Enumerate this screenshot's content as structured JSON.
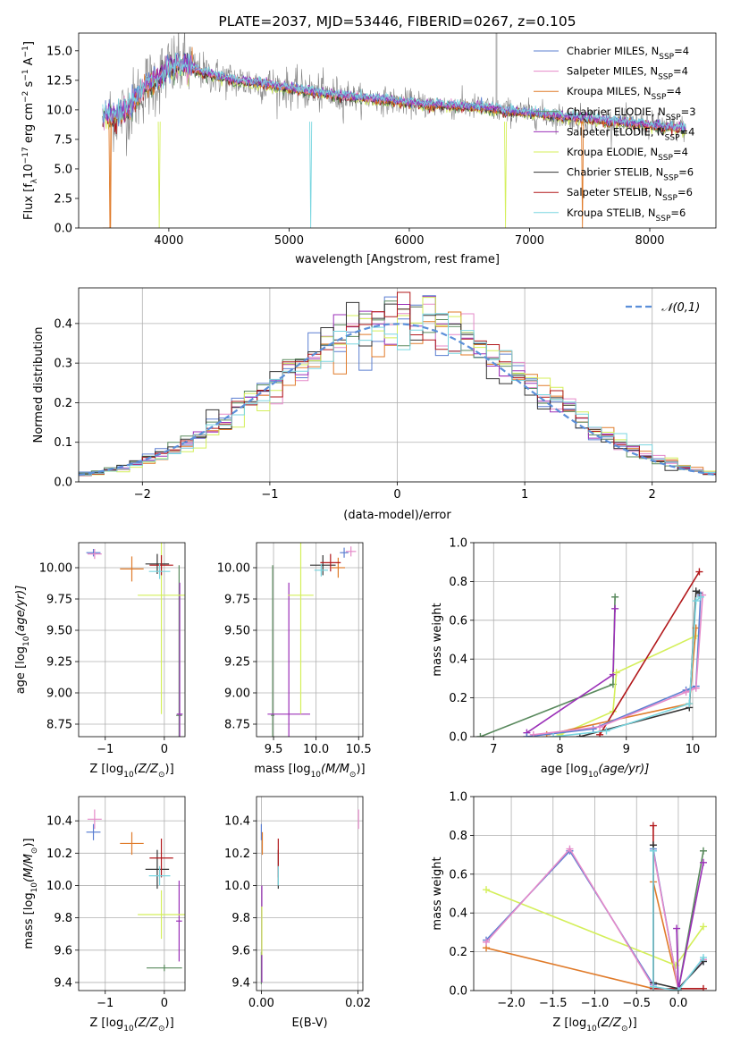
{
  "colors": {
    "chabrier_miles": "#5b7fd1",
    "salpeter_miles": "#e58ac9",
    "kroupa_miles": "#e07b2a",
    "chabrier_elodie": "#5a8a5e",
    "salpeter_elodie": "#9b30b8",
    "kroupa_elodie": "#d4ef5a",
    "chabrier_stelib": "#333333",
    "salpeter_stelib": "#b2181b",
    "kroupa_stelib": "#79d6e0",
    "normal_curve": "#5b8fd9"
  },
  "chart_data": [
    {
      "id": "spectrum",
      "type": "line",
      "title": "PLATE=2037, MJD=53446, FIBERID=0267, z=0.105",
      "xlabel": "wavelength [Angstrom, rest frame]",
      "ylabel": "Flux [f",
      "ylabel_sub": "λ",
      "ylabel_mid": "10",
      "ylabel_sup1": "−17",
      "ylabel_unit": " erg cm",
      "ylabel_sup2": "−2",
      "ylabel_s": " s",
      "ylabel_sup3": "−1",
      "ylabel_A": " A",
      "ylabel_sup4": "−1",
      "ylabel_end": "]",
      "xlim": [
        3250,
        8550
      ],
      "ylim": [
        0,
        16.5
      ],
      "xticks": [
        4000,
        5000,
        6000,
        7000,
        8000
      ],
      "yticks": [
        0.0,
        2.5,
        5.0,
        7.5,
        10.0,
        12.5,
        15.0
      ],
      "legend_position": "upper-right",
      "series": [
        {
          "key": "chabrier_miles",
          "label": "Chabrier MILES, N",
          "sub": "SSP",
          "suffix": "=4"
        },
        {
          "key": "salpeter_miles",
          "label": "Salpeter MILES, N",
          "sub": "SSP",
          "suffix": "=4"
        },
        {
          "key": "kroupa_miles",
          "label": "Kroupa MILES, N",
          "sub": "SSP",
          "suffix": "=4"
        },
        {
          "key": "chabrier_elodie",
          "label": "Chabrier ELODIE, N",
          "sub": "SSP",
          "suffix": "=3"
        },
        {
          "key": "salpeter_elodie",
          "label": "Salpeter ELODIE, N",
          "sub": "SSP",
          "suffix": "=4"
        },
        {
          "key": "kroupa_elodie",
          "label": "Kroupa ELODIE, N",
          "sub": "SSP",
          "suffix": "=4"
        },
        {
          "key": "chabrier_stelib",
          "label": "Chabrier STELIB, N",
          "sub": "SSP",
          "suffix": "=6"
        },
        {
          "key": "salpeter_stelib",
          "label": "Salpeter STELIB, N",
          "sub": "SSP",
          "suffix": "=6"
        },
        {
          "key": "kroupa_stelib",
          "label": "Kroupa STELIB, N",
          "sub": "SSP",
          "suffix": "=6"
        }
      ],
      "data_envelope": {
        "x": [
          3450,
          3600,
          3700,
          3800,
          3900,
          4000,
          4100,
          4200,
          4400,
          4600,
          4800,
          5000,
          5200,
          5400,
          5600,
          5800,
          6000,
          6200,
          6400,
          6600,
          6800,
          7000,
          7200,
          7400,
          7600,
          7800,
          8000,
          8300
        ],
        "y": [
          9.4,
          9.6,
          10.5,
          12.0,
          12.5,
          13.5,
          13.8,
          13.5,
          12.8,
          12.4,
          12.2,
          11.8,
          11.5,
          11.2,
          11.0,
          10.8,
          10.6,
          10.4,
          10.3,
          10.2,
          9.9,
          9.7,
          9.5,
          9.3,
          9.1,
          8.9,
          8.7,
          8.4
        ]
      }
    },
    {
      "id": "residuals",
      "type": "histogram",
      "xlabel": "(data-model)/error",
      "ylabel": "Normed distribution",
      "xlim": [
        -2.5,
        2.5
      ],
      "ylim": [
        0,
        0.49
      ],
      "xticks": [
        -2,
        -1,
        0,
        1,
        2
      ],
      "yticks": [
        0.0,
        0.1,
        0.2,
        0.3,
        0.4
      ],
      "grid": true,
      "bin_width": 0.1,
      "legend_label": "𝒩(0,1)",
      "legend_position": "upper-right"
    },
    {
      "id": "age_vs_Z",
      "type": "errorbar",
      "xlabel": "Z [log",
      "xlabel_sub": "10",
      "xlabel_mid": "(Z/Z",
      "xlabel_sub2": "⊙",
      "xlabel_end": ")]",
      "ylabel": "age  [log",
      "ylabel_sub": "10",
      "ylabel_end": "(age/yr)]",
      "xlim": [
        -1.45,
        0.35
      ],
      "ylim": [
        8.65,
        10.2
      ],
      "xticks": [
        -1,
        0
      ],
      "yticks": [
        8.75,
        9.0,
        9.25,
        9.5,
        9.75,
        10.0
      ],
      "grid": true,
      "points": [
        {
          "key": "chabrier_miles",
          "x": -1.2,
          "xerr": 0.12,
          "y": 10.12,
          "yerr": 0.03
        },
        {
          "key": "salpeter_miles",
          "x": -1.18,
          "xerr": 0.12,
          "y": 10.11,
          "yerr": 0.04
        },
        {
          "key": "kroupa_miles",
          "x": -0.55,
          "xerr": 0.2,
          "y": 9.99,
          "yerr": 0.1
        },
        {
          "key": "chabrier_elodie",
          "x": 0.25,
          "xerr": 0.05,
          "y": 8.82,
          "yerr": 1.2
        },
        {
          "key": "salpeter_elodie",
          "x": 0.26,
          "xerr": 0.05,
          "y": 8.83,
          "yerr": 1.05
        },
        {
          "key": "kroupa_elodie",
          "x": -0.05,
          "xerr": 0.4,
          "y": 9.78,
          "yerr": 0.95
        },
        {
          "key": "chabrier_stelib",
          "x": -0.12,
          "xerr": 0.2,
          "y": 10.03,
          "yerr": 0.08
        },
        {
          "key": "salpeter_stelib",
          "x": -0.05,
          "xerr": 0.2,
          "y": 10.02,
          "yerr": 0.08
        },
        {
          "key": "kroupa_stelib",
          "x": -0.08,
          "xerr": 0.18,
          "y": 9.97,
          "yerr": 0.06
        }
      ]
    },
    {
      "id": "age_vs_mass",
      "type": "errorbar",
      "xlabel": "mass [log",
      "xlabel_sub": "10",
      "xlabel_mid": "(M/M",
      "xlabel_sub2": "⊙",
      "xlabel_end": ")]",
      "xlim": [
        9.3,
        10.55
      ],
      "ylim": [
        8.65,
        10.2
      ],
      "xticks": [
        9.5,
        10.0,
        10.5
      ],
      "yticks": [
        8.75,
        9.0,
        9.25,
        9.5,
        9.75,
        10.0
      ],
      "grid": true,
      "points": [
        {
          "key": "chabrier_miles",
          "x": 10.33,
          "xerr": 0.05,
          "y": 10.12,
          "yerr": 0.04
        },
        {
          "key": "salpeter_miles",
          "x": 10.41,
          "xerr": 0.06,
          "y": 10.13,
          "yerr": 0.04
        },
        {
          "key": "kroupa_miles",
          "x": 10.26,
          "xerr": 0.08,
          "y": 10.0,
          "yerr": 0.08
        },
        {
          "key": "chabrier_elodie",
          "x": 9.49,
          "xerr": 0.02,
          "y": 8.82,
          "yerr": 1.2
        },
        {
          "key": "salpeter_elodie",
          "x": 9.68,
          "xerr": 0.25,
          "y": 8.83,
          "yerr": 1.05
        },
        {
          "key": "kroupa_elodie",
          "x": 9.82,
          "xerr": 0.15,
          "y": 9.78,
          "yerr": 0.95
        },
        {
          "key": "chabrier_stelib",
          "x": 10.08,
          "xerr": 0.15,
          "y": 10.02,
          "yerr": 0.08
        },
        {
          "key": "salpeter_stelib",
          "x": 10.17,
          "xerr": 0.12,
          "y": 10.04,
          "yerr": 0.07
        },
        {
          "key": "kroupa_stelib",
          "x": 10.06,
          "xerr": 0.08,
          "y": 9.98,
          "yerr": 0.05
        }
      ]
    },
    {
      "id": "weight_vs_age",
      "type": "line",
      "xlabel": "age  [log",
      "xlabel_sub": "10",
      "xlabel_end": "(age/yr)]",
      "ylabel": "mass weight",
      "xlim": [
        6.7,
        10.35
      ],
      "ylim": [
        0,
        1.0
      ],
      "xticks": [
        7,
        8,
        9,
        10
      ],
      "yticks": [
        0.0,
        0.2,
        0.4,
        0.6,
        0.8,
        1.0
      ],
      "grid": true,
      "series": [
        {
          "key": "chabrier_elodie",
          "x": [
            6.8,
            8.8,
            8.83
          ],
          "y": [
            0.0,
            0.27,
            0.72
          ]
        },
        {
          "key": "salpeter_elodie",
          "x": [
            7.5,
            8.8,
            8.83
          ],
          "y": [
            0.02,
            0.32,
            0.66
          ]
        },
        {
          "key": "kroupa_elodie",
          "x": [
            8.0,
            8.8,
            8.85,
            10.05
          ],
          "y": [
            0.01,
            0.13,
            0.33,
            0.52
          ]
        },
        {
          "key": "salpeter_stelib",
          "x": [
            8.6,
            10.1
          ],
          "y": [
            0.01,
            0.85
          ]
        },
        {
          "key": "kroupa_miles",
          "x": [
            7.8,
            9.95,
            10.05
          ],
          "y": [
            0.01,
            0.17,
            0.56
          ]
        },
        {
          "key": "chabrier_stelib",
          "x": [
            8.3,
            9.95,
            10.05,
            10.1
          ],
          "y": [
            0.0,
            0.15,
            0.75,
            0.74
          ]
        },
        {
          "key": "chabrier_miles",
          "x": [
            7.5,
            8.5,
            9.9,
            10.05,
            10.12
          ],
          "y": [
            0.0,
            0.04,
            0.24,
            0.26,
            0.73
          ]
        },
        {
          "key": "salpeter_miles",
          "x": [
            7.6,
            8.6,
            9.9,
            10.05,
            10.15
          ],
          "y": [
            0.01,
            0.05,
            0.23,
            0.25,
            0.73
          ]
        },
        {
          "key": "kroupa_stelib",
          "x": [
            7.9,
            8.7,
            9.95,
            10.05,
            10.12
          ],
          "y": [
            0.0,
            0.03,
            0.17,
            0.7,
            0.72
          ]
        }
      ]
    },
    {
      "id": "mass_vs_Z",
      "type": "errorbar",
      "xlabel": "Z [log",
      "xlabel_sub": "10",
      "xlabel_mid": "(Z/Z",
      "xlabel_sub2": "⊙",
      "xlabel_end": ")]",
      "ylabel": "mass [log",
      "ylabel_sub": "10",
      "ylabel_mid": "(M/M",
      "ylabel_sub2": "⊙",
      "ylabel_end": ")]",
      "xlim": [
        -1.45,
        0.35
      ],
      "ylim": [
        9.35,
        10.55
      ],
      "xticks": [
        -1,
        0
      ],
      "yticks": [
        9.4,
        9.6,
        9.8,
        10.0,
        10.2,
        10.4
      ],
      "grid": true,
      "points": [
        {
          "key": "chabrier_miles",
          "x": -1.2,
          "xerr": 0.12,
          "y": 10.33,
          "yerr": 0.05
        },
        {
          "key": "salpeter_miles",
          "x": -1.18,
          "xerr": 0.12,
          "y": 10.41,
          "yerr": 0.06
        },
        {
          "key": "kroupa_miles",
          "x": -0.55,
          "xerr": 0.2,
          "y": 10.26,
          "yerr": 0.07
        },
        {
          "key": "chabrier_elodie",
          "x": 0.0,
          "xerr": 0.3,
          "y": 9.49,
          "yerr": 0.02
        },
        {
          "key": "salpeter_elodie",
          "x": 0.25,
          "xerr": 0.05,
          "y": 9.78,
          "yerr": 0.25
        },
        {
          "key": "kroupa_elodie",
          "x": -0.05,
          "xerr": 0.4,
          "y": 9.82,
          "yerr": 0.15
        },
        {
          "key": "chabrier_stelib",
          "x": -0.12,
          "xerr": 0.2,
          "y": 10.1,
          "yerr": 0.12
        },
        {
          "key": "salpeter_stelib",
          "x": -0.05,
          "xerr": 0.2,
          "y": 10.17,
          "yerr": 0.12
        },
        {
          "key": "kroupa_stelib",
          "x": -0.08,
          "xerr": 0.18,
          "y": 10.06,
          "yerr": 0.06
        }
      ]
    },
    {
      "id": "mass_vs_ebv",
      "type": "errorbar",
      "xlabel": "E(B-V)",
      "xlim": [
        -0.001,
        0.021
      ],
      "ylim": [
        9.35,
        10.55
      ],
      "xticks": [
        0.0,
        0.02
      ],
      "xtick_labels": [
        "0.00",
        "0.02"
      ],
      "yticks": [
        9.4,
        9.6,
        9.8,
        10.0,
        10.2,
        10.4
      ],
      "grid": true,
      "points": [
        {
          "key": "chabrier_miles",
          "x": 0.0,
          "xerr": 0,
          "y": 10.33,
          "yerr": 0.05
        },
        {
          "key": "salpeter_miles",
          "x": 0.0201,
          "xerr": 0,
          "y": 10.41,
          "yerr": 0.06
        },
        {
          "key": "kroupa_miles",
          "x": 0.0002,
          "xerr": 0,
          "y": 10.26,
          "yerr": 0.07
        },
        {
          "key": "chabrier_elodie",
          "x": 0.0,
          "xerr": 0,
          "y": 9.49,
          "yerr": 0.1
        },
        {
          "key": "salpeter_elodie",
          "x": 0.0001,
          "xerr": 0,
          "y": 9.7,
          "yerr": 0.3
        },
        {
          "key": "kroupa_elodie",
          "x": 0.0001,
          "xerr": 0,
          "y": 9.72,
          "yerr": 0.15
        },
        {
          "key": "chabrier_stelib",
          "x": 0.0035,
          "xerr": 0,
          "y": 10.1,
          "yerr": 0.12
        },
        {
          "key": "salpeter_stelib",
          "x": 0.0035,
          "xerr": 0,
          "y": 10.17,
          "yerr": 0.12
        },
        {
          "key": "kroupa_stelib",
          "x": 0.0035,
          "xerr": 0,
          "y": 10.06,
          "yerr": 0.06
        }
      ]
    },
    {
      "id": "weight_vs_Z",
      "type": "line",
      "xlabel": "Z [log",
      "xlabel_sub": "10",
      "xlabel_mid": "(Z/Z",
      "xlabel_sub2": "⊙",
      "xlabel_end": ")]",
      "ylabel": "mass weight",
      "xlim": [
        -2.45,
        0.45
      ],
      "ylim": [
        0,
        1.0
      ],
      "xticks": [
        -2.0,
        -1.5,
        -1.0,
        -0.5,
        0.0
      ],
      "yticks": [
        0.0,
        0.2,
        0.4,
        0.6,
        0.8,
        1.0
      ],
      "grid": true,
      "series": [
        {
          "key": "kroupa_miles",
          "x": [
            -2.3,
            -0.3,
            -0.3,
            0.0
          ],
          "y": [
            0.22,
            0.01,
            0.56,
            0.01
          ]
        },
        {
          "key": "kroupa_elodie",
          "x": [
            -2.3,
            -0.03,
            0.3
          ],
          "y": [
            0.52,
            0.13,
            0.33
          ]
        },
        {
          "key": "chabrier_miles",
          "x": [
            -2.3,
            -1.3,
            -0.3,
            -0.3,
            0.0,
            0.3
          ],
          "y": [
            0.26,
            0.72,
            0.03,
            0.73,
            0.01,
            0.15
          ]
        },
        {
          "key": "salpeter_miles",
          "x": [
            -2.3,
            -1.3,
            -0.3,
            -0.3,
            0.0,
            0.3
          ],
          "y": [
            0.25,
            0.73,
            0.02,
            0.72,
            0.01,
            0.16
          ]
        },
        {
          "key": "salpeter_stelib",
          "x": [
            -0.3,
            -0.3,
            0.3
          ],
          "y": [
            0.85,
            0.01,
            0.01
          ]
        },
        {
          "key": "chabrier_stelib",
          "x": [
            -0.3,
            -0.3,
            0.0,
            0.3
          ],
          "y": [
            0.75,
            0.04,
            0.01,
            0.15
          ]
        },
        {
          "key": "chabrier_elodie",
          "x": [
            0.0,
            0.3
          ],
          "y": [
            0.0,
            0.72
          ]
        },
        {
          "key": "salpeter_elodie",
          "x": [
            -0.02,
            0.0,
            0.3
          ],
          "y": [
            0.32,
            0.0,
            0.66
          ]
        },
        {
          "key": "kroupa_stelib",
          "x": [
            -0.3,
            -0.3,
            0.0,
            0.3
          ],
          "y": [
            0.72,
            0.02,
            0.0,
            0.17
          ]
        }
      ]
    }
  ]
}
